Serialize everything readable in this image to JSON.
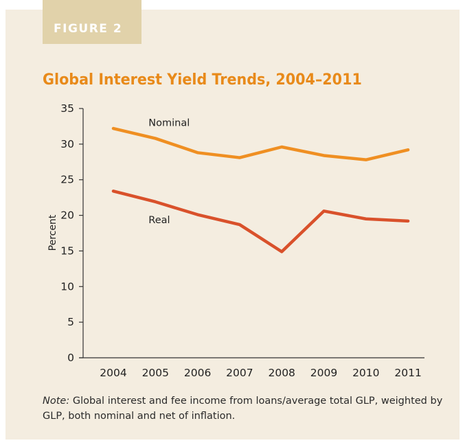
{
  "figure_label": "FIGURE 2",
  "note_prefix": "Note:",
  "note_text": "Global interest and fee income from loans/average total GLP, weighted by GLP, both nominal and net of inflation.",
  "colors": {
    "panel": "#f4ede0",
    "tag": "#e1d2aa",
    "title": "#e88a1a",
    "nominal": "#ef8f22",
    "real": "#d9512b"
  },
  "chart_data": {
    "type": "line",
    "title": "Global Interest Yield Trends, 2004–2011",
    "xlabel": "",
    "ylabel": "Percent",
    "categories": [
      "2004",
      "2005",
      "2006",
      "2007",
      "2008",
      "2009",
      "2010",
      "2011"
    ],
    "ylim": [
      0,
      35
    ],
    "yticks": [
      "0",
      "5",
      "10",
      "15",
      "20",
      "25",
      "30",
      "35"
    ],
    "grid": false,
    "series": [
      {
        "name": "Nominal",
        "values": [
          32.2,
          30.8,
          28.8,
          28.1,
          29.6,
          28.4,
          27.8,
          29.2
        ]
      },
      {
        "name": "Real",
        "values": [
          23.4,
          21.9,
          20.1,
          18.7,
          14.9,
          20.6,
          19.5,
          19.2
        ]
      }
    ]
  }
}
